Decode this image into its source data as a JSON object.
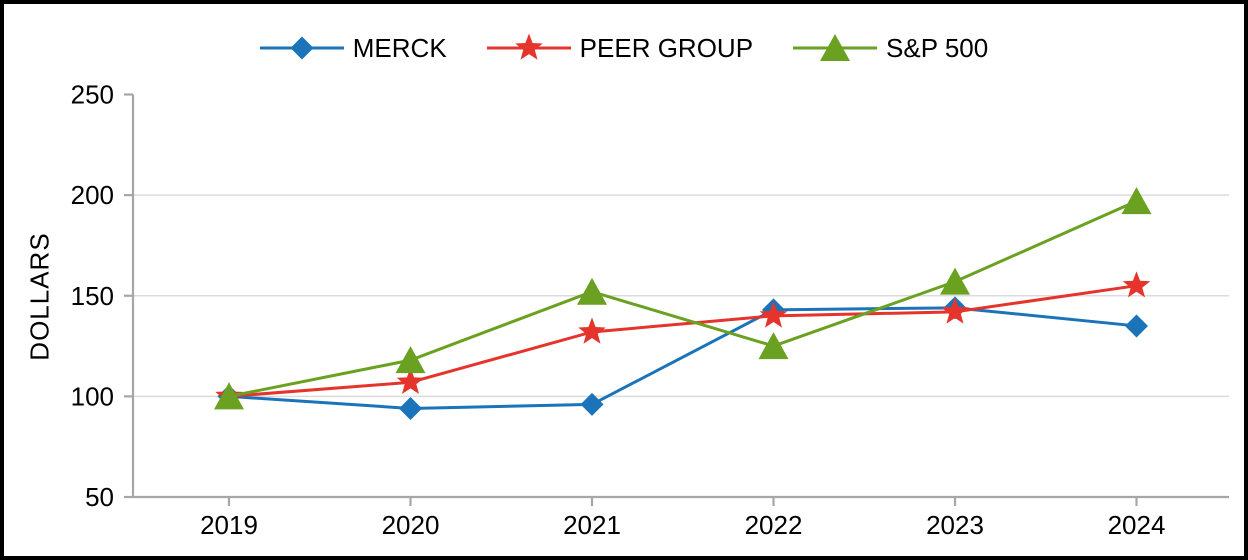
{
  "chart_data": {
    "type": "line",
    "title": "",
    "categories": [
      "2019",
      "2020",
      "2021",
      "2022",
      "2023",
      "2024"
    ],
    "series": [
      {
        "name": "MERCK",
        "marker": "diamond",
        "color": "#1B73B9",
        "values": [
          100,
          94,
          96,
          143,
          144,
          135
        ]
      },
      {
        "name": "PEER GROUP",
        "marker": "star",
        "color": "#E5342B",
        "values": [
          100,
          107,
          132,
          140,
          142,
          155
        ]
      },
      {
        "name": "S&P 500",
        "marker": "triangle",
        "color": "#6AA121",
        "values": [
          100,
          118,
          152,
          125,
          157,
          197
        ]
      }
    ],
    "xlabel": "",
    "ylabel": "DOLLARS",
    "ylim": [
      50,
      250
    ],
    "yticks": [
      50,
      100,
      150,
      200,
      250
    ],
    "grid": "horizontal",
    "legend_position": "top-center",
    "axis_color": "#A6A6A6",
    "grid_color": "#DBDBDB",
    "text_color": "#000000",
    "background_color": "#FFFFFF",
    "frame_border_color": "#000000"
  }
}
